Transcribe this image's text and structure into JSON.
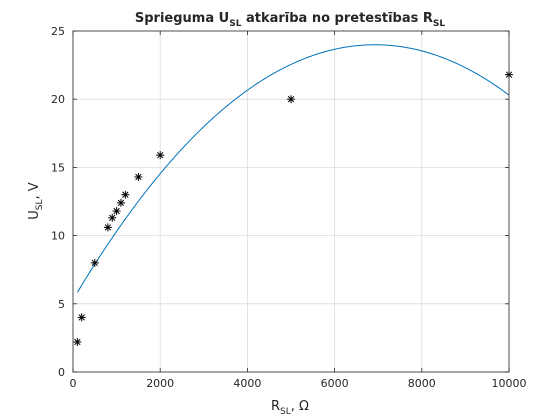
{
  "chart_data": {
    "type": "scatter",
    "title": {
      "prefix": "Sprieguma U",
      "sub1": "SL",
      "middle": " atkarība no pretestības R",
      "sub2": "SL"
    },
    "xlabel": {
      "main": "R",
      "sub": "SL",
      "suffix": ", Ω"
    },
    "ylabel": {
      "main": "U",
      "sub": "SL",
      "suffix": ", V"
    },
    "xlim": [
      0,
      10000
    ],
    "ylim": [
      0,
      25
    ],
    "xticks": [
      0,
      2000,
      4000,
      6000,
      8000,
      10000
    ],
    "yticks": [
      0,
      5,
      10,
      15,
      20,
      25
    ],
    "grid": true,
    "series": [
      {
        "kind": "markers",
        "marker": "asterisk",
        "color": "#000000",
        "x": [
          100,
          200,
          500,
          800,
          900,
          1000,
          1100,
          1200,
          1500,
          2000,
          5000,
          10000
        ],
        "y": [
          2.2,
          4.0,
          8.0,
          10.6,
          11.3,
          11.8,
          12.4,
          13.0,
          14.3,
          15.9,
          20.0,
          21.8
        ]
      },
      {
        "kind": "line",
        "color": "#0072BD",
        "fit": "quadratic",
        "x_range": [
          100,
          10000
        ],
        "coefficients": {
          "a": -3.9e-07,
          "b": 0.0054,
          "c": 5.3
        }
      }
    ]
  }
}
